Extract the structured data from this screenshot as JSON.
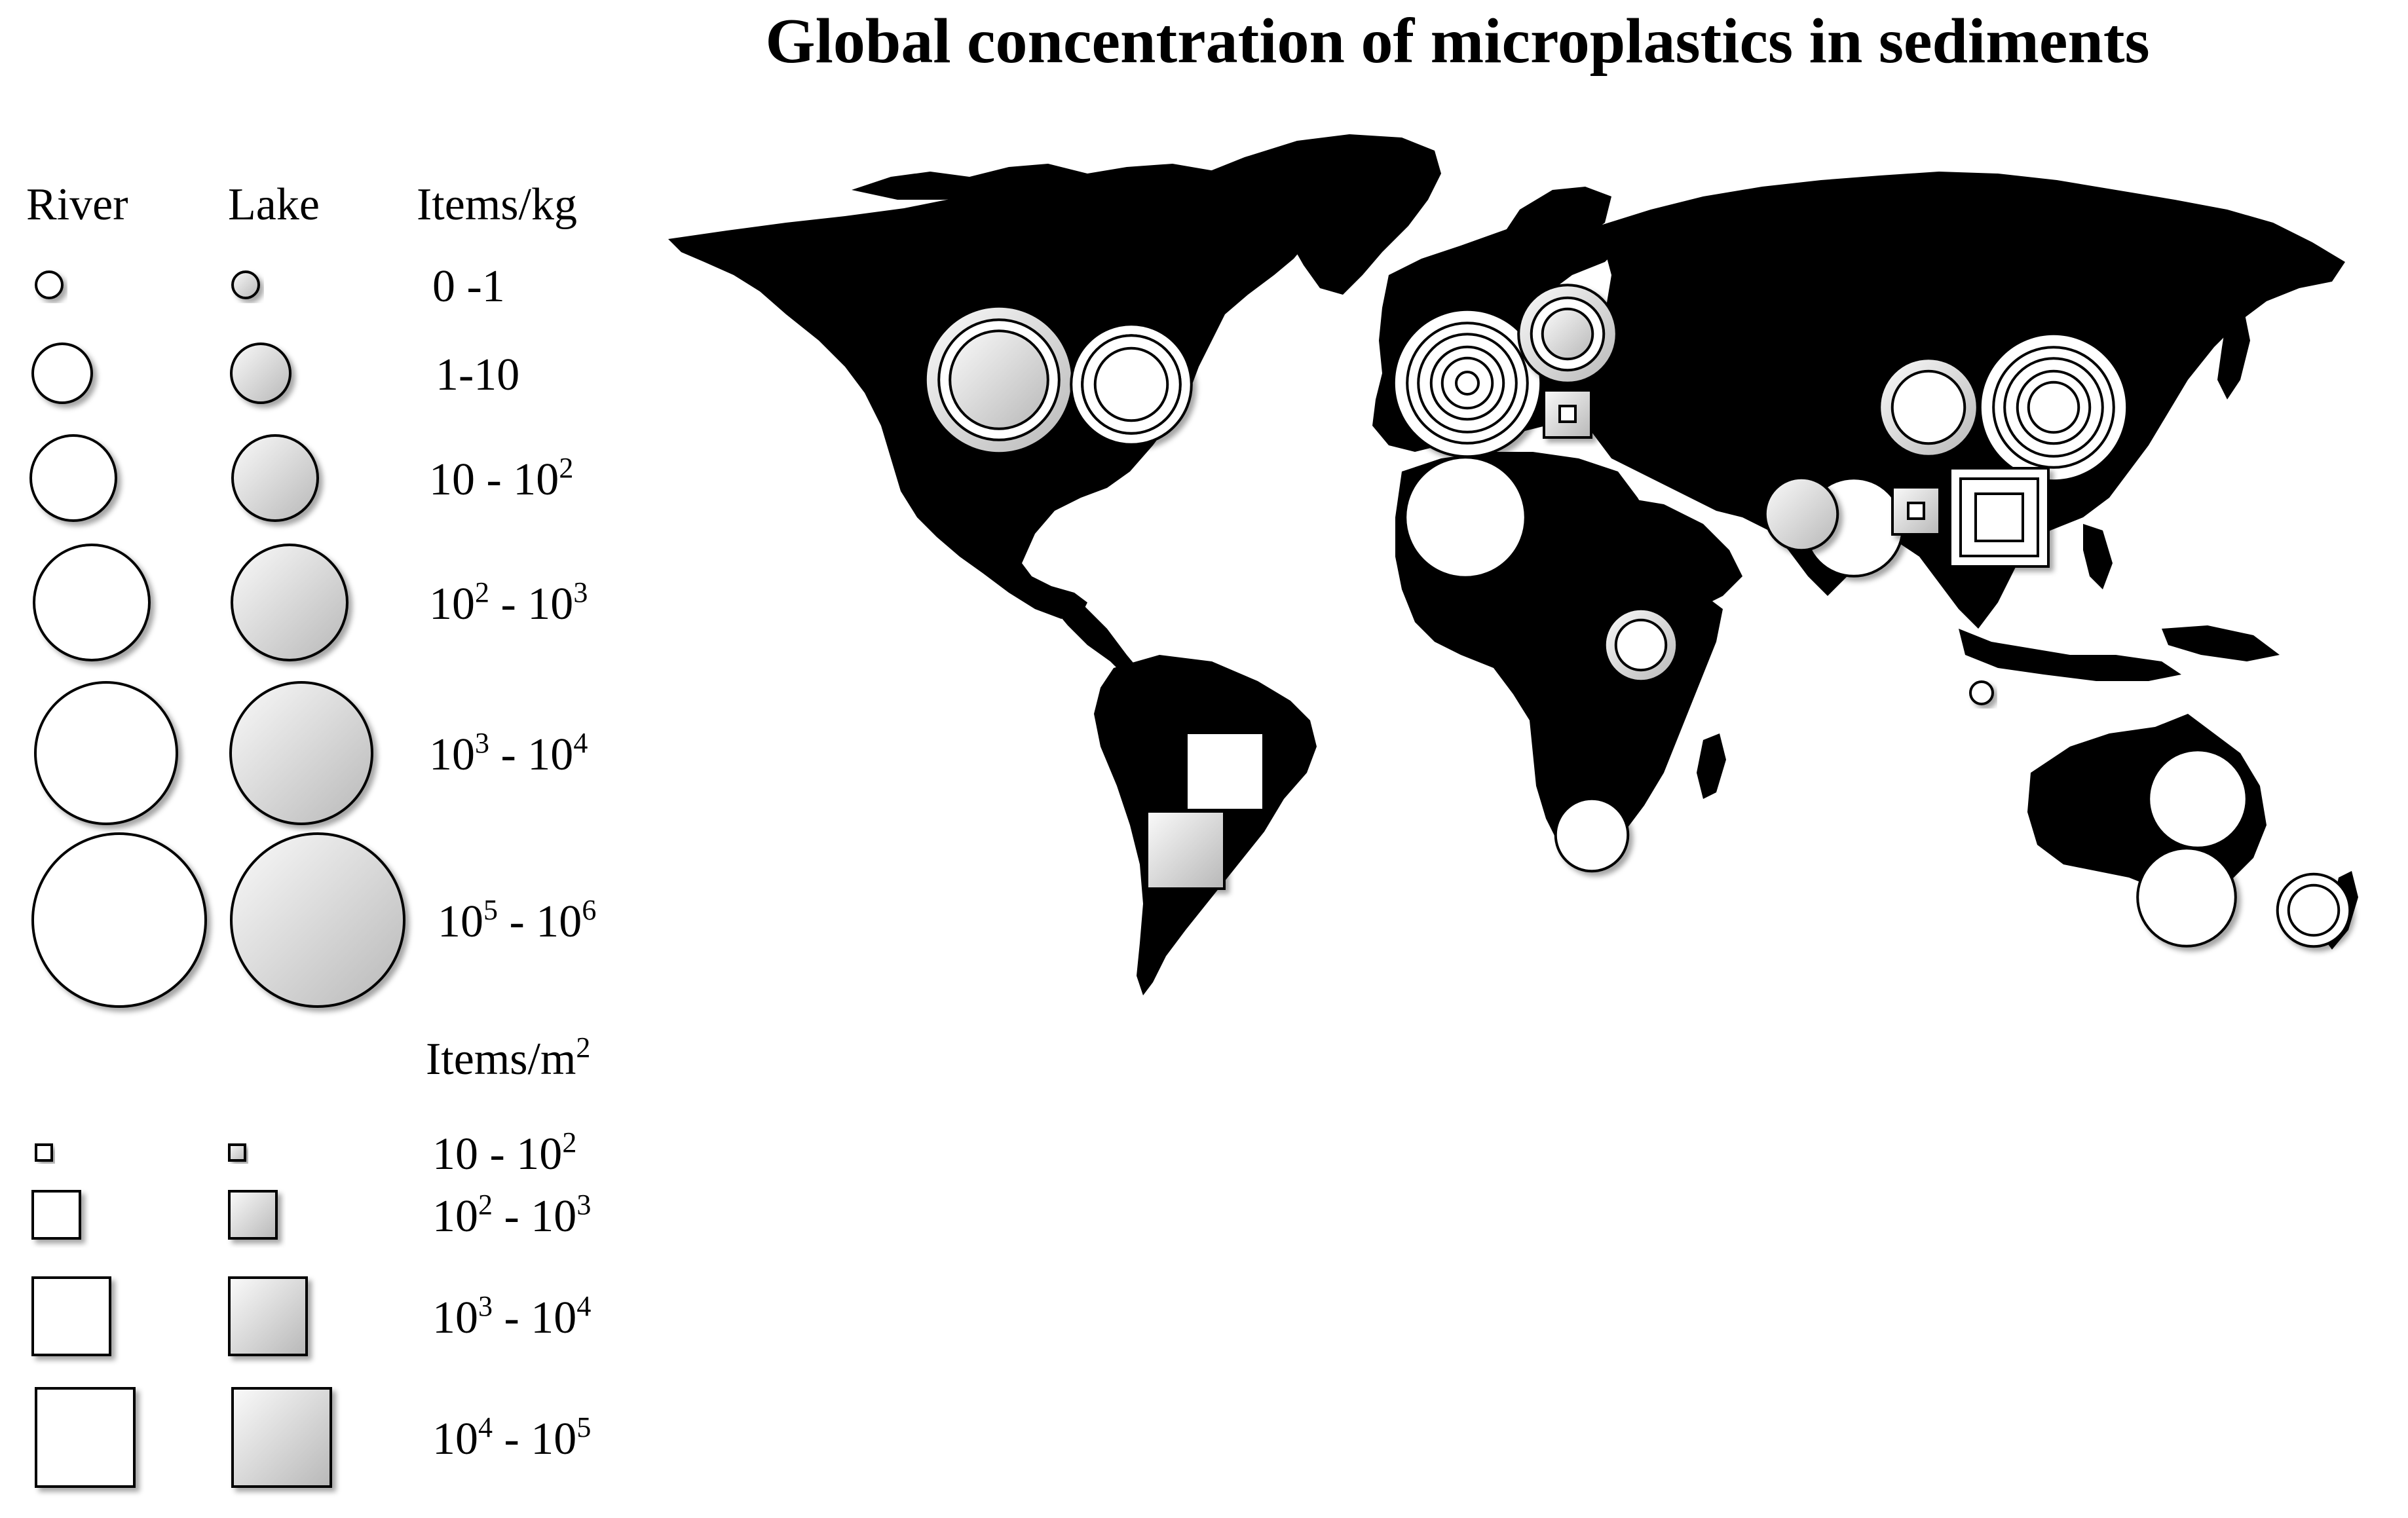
{
  "title": "Global concentration of microplastics in sediments",
  "legend": {
    "col_river": "River",
    "col_lake": "Lake",
    "unit_kg": "Items/kg",
    "unit_m2_base": "Items/m",
    "unit_m2_exp": "2",
    "kg_ranges": [
      {
        "a": "0 -1"
      },
      {
        "a": "1-10"
      },
      {
        "a": "10 - 10",
        "ae": "2"
      },
      {
        "a": "10",
        "ae": "2",
        "b": " - 10",
        "be": "3"
      },
      {
        "a": "10",
        "ae": "3",
        "b": " - 10",
        "be": "4"
      },
      {
        "a": "10",
        "ae": "5",
        "b": " - 10",
        "be": "6"
      }
    ],
    "m2_ranges": [
      {
        "a": "10 - 10",
        "ae": "2"
      },
      {
        "a": "10",
        "ae": "2",
        "b": " - 10",
        "be": "3"
      },
      {
        "a": "10",
        "ae": "3",
        "b": " - 10",
        "be": "4"
      },
      {
        "a": "10",
        "ae": "4",
        "b": " - 10",
        "be": "5"
      }
    ]
  },
  "colors": {
    "land": "#000000",
    "river_fill": "#ffffff",
    "lake_fill_light": "#f2f2f2",
    "lake_fill_dark": "#bdbdbd",
    "outline": "#000000"
  },
  "sites": [
    {
      "region": "North America - Great Lakes",
      "kind": "lake",
      "unit": "items/kg",
      "classes": [
        6,
        5,
        4
      ]
    },
    {
      "region": "North America - St. Lawrence",
      "kind": "river",
      "unit": "items/kg",
      "classes": [
        5,
        4,
        4,
        3
      ]
    },
    {
      "region": "Western Europe",
      "kind": "river",
      "unit": "items/kg",
      "classes": [
        6,
        5,
        4,
        3,
        2,
        1
      ]
    },
    {
      "region": "Central Europe",
      "kind": "lake",
      "unit": "items/kg",
      "classes": [
        4,
        3,
        2
      ]
    },
    {
      "region": "Central Europe",
      "kind": "lake",
      "unit": "items/m2",
      "classes": [
        2,
        1
      ]
    },
    {
      "region": "North Africa",
      "kind": "river",
      "unit": "items/kg",
      "classes": [
        5
      ]
    },
    {
      "region": "East Africa",
      "kind": "lake",
      "unit": "items/kg",
      "classes": [
        3,
        2
      ]
    },
    {
      "region": "Southern Africa",
      "kind": "river",
      "unit": "items/kg",
      "classes": [
        3
      ]
    },
    {
      "region": "South Asia",
      "kind": "river",
      "unit": "items/kg",
      "classes": [
        4
      ]
    },
    {
      "region": "South Asia",
      "kind": "lake",
      "unit": "items/kg",
      "classes": [
        3
      ]
    },
    {
      "region": "China - Tibet",
      "kind": "lake",
      "unit": "items/kg",
      "classes": [
        4,
        3
      ]
    },
    {
      "region": "China - East",
      "kind": "river",
      "unit": "items/kg",
      "classes": [
        6,
        5,
        4,
        3,
        2
      ]
    },
    {
      "region": "Southeast Asia",
      "kind": "lake",
      "unit": "items/m2",
      "classes": [
        2,
        1
      ]
    },
    {
      "region": "Southeast Asia",
      "kind": "river",
      "unit": "items/m2",
      "classes": [
        4,
        3,
        2
      ]
    },
    {
      "region": "Indonesia",
      "kind": "river",
      "unit": "items/kg",
      "classes": [
        1
      ]
    },
    {
      "region": "South America - Brazil",
      "kind": "river",
      "unit": "items/m2",
      "classes": [
        3
      ]
    },
    {
      "region": "South America - Argentina",
      "kind": "lake",
      "unit": "items/m2",
      "classes": [
        3
      ]
    },
    {
      "region": "Australia - East",
      "kind": "river",
      "unit": "items/kg",
      "classes": [
        4
      ]
    },
    {
      "region": "Australia - Southeast",
      "kind": "river",
      "unit": "items/kg",
      "classes": [
        4
      ]
    },
    {
      "region": "New Zealand",
      "kind": "river",
      "unit": "items/kg",
      "classes": [
        3,
        2
      ]
    }
  ]
}
